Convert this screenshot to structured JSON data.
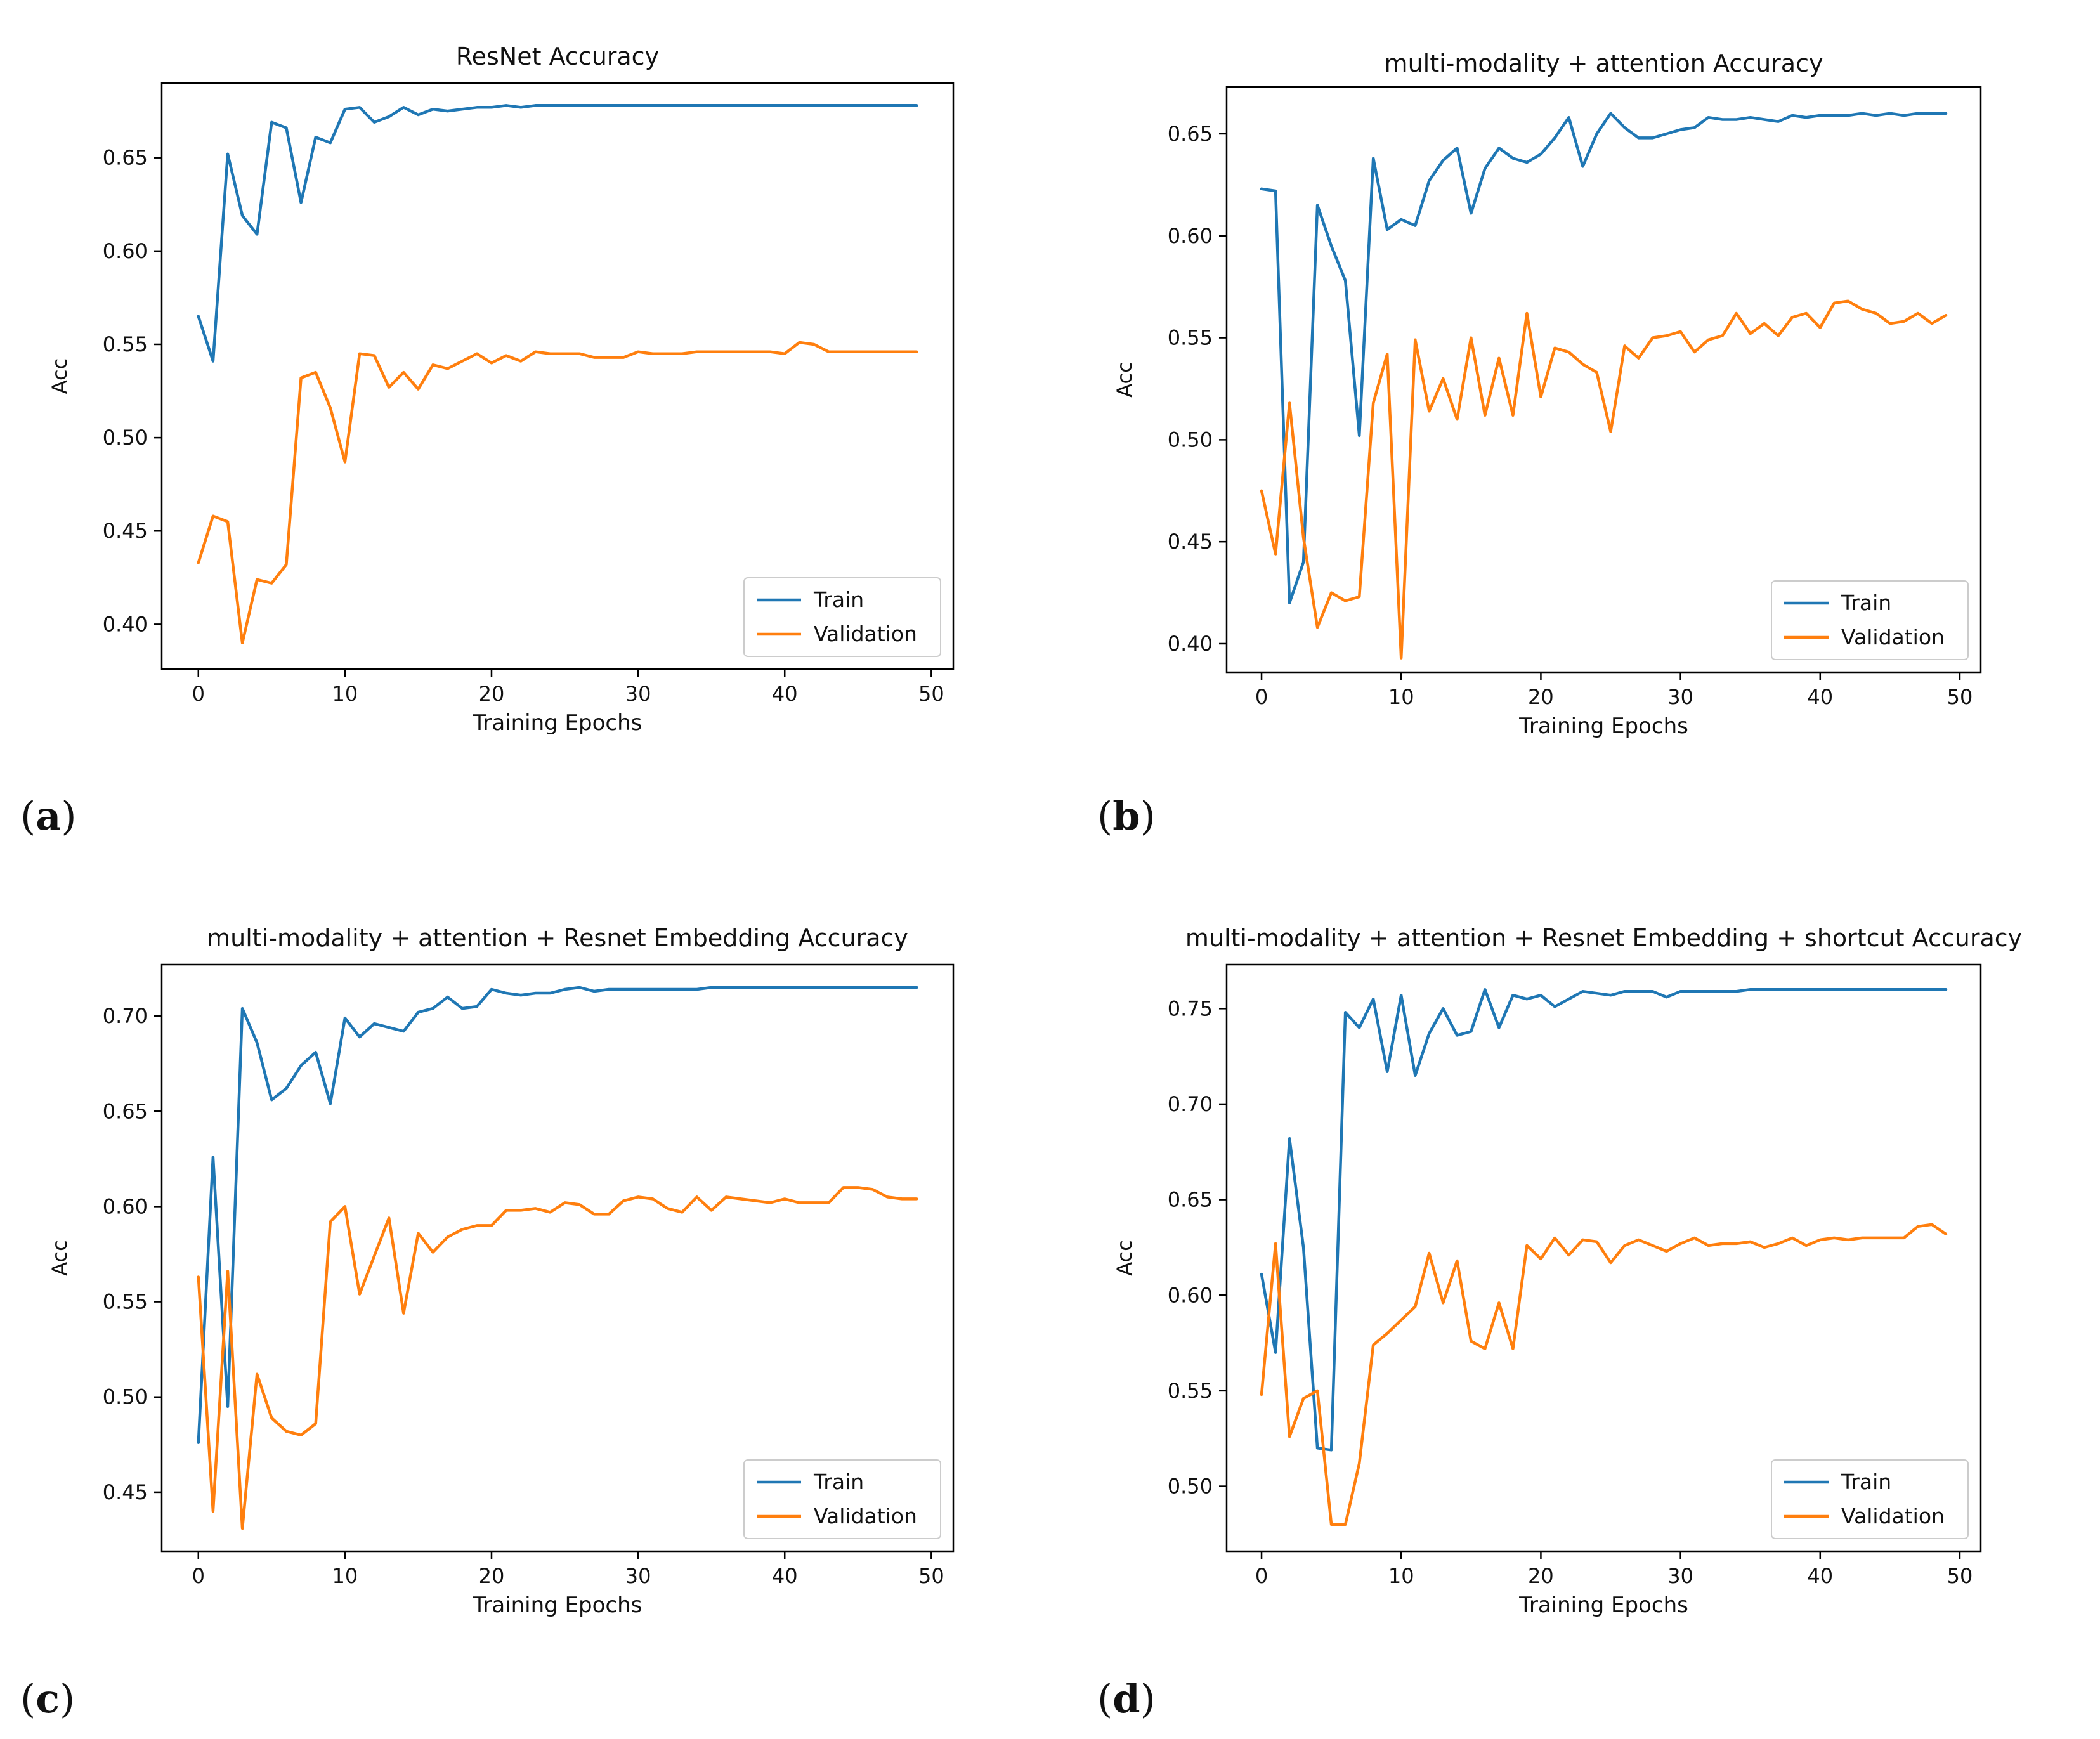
{
  "panel_labels": [
    "a",
    "b",
    "c",
    "d"
  ],
  "legend": {
    "train": "Train",
    "validation": "Validation"
  },
  "colors": {
    "train": "#1f77b4",
    "validation": "#ff7f0e",
    "axis": "#000000",
    "text": "#111111"
  },
  "chart_data": [
    {
      "type": "line",
      "title": "ResNet Accuracy",
      "xlabel": "Training Epochs",
      "ylabel": "Acc",
      "xlim": [
        -2.5,
        51.5
      ],
      "ylim": [
        0.376,
        0.69
      ],
      "xticks": [
        0,
        10,
        20,
        30,
        40,
        50
      ],
      "yticks": [
        0.4,
        0.45,
        0.5,
        0.55,
        0.6,
        0.65
      ],
      "ytick_labels": [
        "0.40",
        "0.45",
        "0.50",
        "0.55",
        "0.60",
        "0.65"
      ],
      "legend_position": "lower right",
      "series": [
        {
          "name": "Train",
          "values": [
            0.565,
            0.541,
            0.652,
            0.619,
            0.609,
            0.669,
            0.666,
            0.626,
            0.661,
            0.658,
            0.676,
            0.677,
            0.669,
            0.672,
            0.677,
            0.673,
            0.676,
            0.675,
            0.676,
            0.677,
            0.677,
            0.678,
            0.677,
            0.678,
            0.678,
            0.678,
            0.678,
            0.678,
            0.678,
            0.678,
            0.678,
            0.678,
            0.678,
            0.678,
            0.678,
            0.678,
            0.678,
            0.678,
            0.678,
            0.678,
            0.678,
            0.678,
            0.678,
            0.678,
            0.678,
            0.678,
            0.678,
            0.678,
            0.678,
            0.678
          ]
        },
        {
          "name": "Validation",
          "values": [
            0.433,
            0.458,
            0.455,
            0.39,
            0.424,
            0.422,
            0.432,
            0.532,
            0.535,
            0.516,
            0.487,
            0.545,
            0.544,
            0.527,
            0.535,
            0.526,
            0.539,
            0.537,
            0.541,
            0.545,
            0.54,
            0.544,
            0.541,
            0.546,
            0.545,
            0.545,
            0.545,
            0.543,
            0.543,
            0.543,
            0.546,
            0.545,
            0.545,
            0.545,
            0.546,
            0.546,
            0.546,
            0.546,
            0.546,
            0.546,
            0.545,
            0.551,
            0.55,
            0.546,
            0.546,
            0.546,
            0.546,
            0.546,
            0.546,
            0.546
          ]
        }
      ]
    },
    {
      "type": "line",
      "title": "multi-modality + attention Accuracy",
      "xlabel": "Training Epochs",
      "ylabel": "Acc",
      "xlim": [
        -2.5,
        51.5
      ],
      "ylim": [
        0.386,
        0.673
      ],
      "xticks": [
        0,
        10,
        20,
        30,
        40,
        50
      ],
      "yticks": [
        0.4,
        0.45,
        0.5,
        0.55,
        0.6,
        0.65
      ],
      "ytick_labels": [
        "0.40",
        "0.45",
        "0.50",
        "0.55",
        "0.60",
        "0.65"
      ],
      "legend_position": "lower right",
      "series": [
        {
          "name": "Train",
          "values": [
            0.623,
            0.622,
            0.42,
            0.44,
            0.615,
            0.595,
            0.578,
            0.502,
            0.638,
            0.603,
            0.608,
            0.605,
            0.627,
            0.637,
            0.643,
            0.611,
            0.633,
            0.643,
            0.638,
            0.636,
            0.64,
            0.648,
            0.658,
            0.634,
            0.65,
            0.66,
            0.653,
            0.648,
            0.648,
            0.65,
            0.652,
            0.653,
            0.658,
            0.657,
            0.657,
            0.658,
            0.657,
            0.656,
            0.659,
            0.658,
            0.659,
            0.659,
            0.659,
            0.66,
            0.659,
            0.66,
            0.659,
            0.66,
            0.66,
            0.66
          ]
        },
        {
          "name": "Validation",
          "values": [
            0.475,
            0.444,
            0.518,
            0.452,
            0.408,
            0.425,
            0.421,
            0.423,
            0.518,
            0.542,
            0.393,
            0.549,
            0.514,
            0.53,
            0.51,
            0.55,
            0.512,
            0.54,
            0.512,
            0.562,
            0.521,
            0.545,
            0.543,
            0.537,
            0.533,
            0.504,
            0.546,
            0.54,
            0.55,
            0.551,
            0.553,
            0.543,
            0.549,
            0.551,
            0.562,
            0.552,
            0.557,
            0.551,
            0.56,
            0.562,
            0.555,
            0.567,
            0.568,
            0.564,
            0.562,
            0.557,
            0.558,
            0.562,
            0.557,
            0.561
          ]
        }
      ]
    },
    {
      "type": "line",
      "title": "multi-modality + attention + Resnet Embedding Accuracy",
      "xlabel": "Training Epochs",
      "ylabel": "Acc",
      "xlim": [
        -2.5,
        51.5
      ],
      "ylim": [
        0.419,
        0.727
      ],
      "xticks": [
        0,
        10,
        20,
        30,
        40,
        50
      ],
      "yticks": [
        0.45,
        0.5,
        0.55,
        0.6,
        0.65,
        0.7
      ],
      "ytick_labels": [
        "0.45",
        "0.50",
        "0.55",
        "0.60",
        "0.65",
        "0.70"
      ],
      "legend_position": "lower right",
      "series": [
        {
          "name": "Train",
          "values": [
            0.476,
            0.626,
            0.495,
            0.704,
            0.686,
            0.656,
            0.662,
            0.674,
            0.681,
            0.654,
            0.699,
            0.689,
            0.696,
            0.694,
            0.692,
            0.702,
            0.704,
            0.71,
            0.704,
            0.705,
            0.714,
            0.712,
            0.711,
            0.712,
            0.712,
            0.714,
            0.715,
            0.713,
            0.714,
            0.714,
            0.714,
            0.714,
            0.714,
            0.714,
            0.714,
            0.715,
            0.715,
            0.715,
            0.715,
            0.715,
            0.715,
            0.715,
            0.715,
            0.715,
            0.715,
            0.715,
            0.715,
            0.715,
            0.715,
            0.715
          ]
        },
        {
          "name": "Validation",
          "values": [
            0.563,
            0.44,
            0.566,
            0.431,
            0.512,
            0.489,
            0.482,
            0.48,
            0.486,
            0.592,
            0.6,
            0.554,
            0.574,
            0.594,
            0.544,
            0.586,
            0.576,
            0.584,
            0.588,
            0.59,
            0.59,
            0.598,
            0.598,
            0.599,
            0.597,
            0.602,
            0.601,
            0.596,
            0.596,
            0.603,
            0.605,
            0.604,
            0.599,
            0.597,
            0.605,
            0.598,
            0.605,
            0.604,
            0.603,
            0.602,
            0.604,
            0.602,
            0.602,
            0.602,
            0.61,
            0.61,
            0.609,
            0.605,
            0.604,
            0.604
          ]
        }
      ]
    },
    {
      "type": "line",
      "title": "multi-modality + attention + Resnet Embedding + shortcut Accuracy",
      "xlabel": "Training Epochs",
      "ylabel": "Acc",
      "xlim": [
        -2.5,
        51.5
      ],
      "ylim": [
        0.466,
        0.773
      ],
      "xticks": [
        0,
        10,
        20,
        30,
        40,
        50
      ],
      "yticks": [
        0.5,
        0.55,
        0.6,
        0.65,
        0.7,
        0.75
      ],
      "ytick_labels": [
        "0.50",
        "0.55",
        "0.60",
        "0.65",
        "0.70",
        "0.75"
      ],
      "legend_position": "lower right",
      "series": [
        {
          "name": "Train",
          "values": [
            0.611,
            0.57,
            0.682,
            0.625,
            0.52,
            0.519,
            0.748,
            0.74,
            0.755,
            0.717,
            0.757,
            0.715,
            0.737,
            0.75,
            0.736,
            0.738,
            0.76,
            0.74,
            0.757,
            0.755,
            0.757,
            0.751,
            0.755,
            0.759,
            0.758,
            0.757,
            0.759,
            0.759,
            0.759,
            0.756,
            0.759,
            0.759,
            0.759,
            0.759,
            0.759,
            0.76,
            0.76,
            0.76,
            0.76,
            0.76,
            0.76,
            0.76,
            0.76,
            0.76,
            0.76,
            0.76,
            0.76,
            0.76,
            0.76,
            0.76
          ]
        },
        {
          "name": "Validation",
          "values": [
            0.548,
            0.627,
            0.526,
            0.546,
            0.55,
            0.48,
            0.48,
            0.512,
            0.574,
            0.58,
            0.587,
            0.594,
            0.622,
            0.596,
            0.618,
            0.576,
            0.572,
            0.596,
            0.572,
            0.626,
            0.619,
            0.63,
            0.621,
            0.629,
            0.628,
            0.617,
            0.626,
            0.629,
            0.626,
            0.623,
            0.627,
            0.63,
            0.626,
            0.627,
            0.627,
            0.628,
            0.625,
            0.627,
            0.63,
            0.626,
            0.629,
            0.63,
            0.629,
            0.63,
            0.63,
            0.63,
            0.63,
            0.636,
            0.637,
            0.632
          ]
        }
      ]
    }
  ]
}
